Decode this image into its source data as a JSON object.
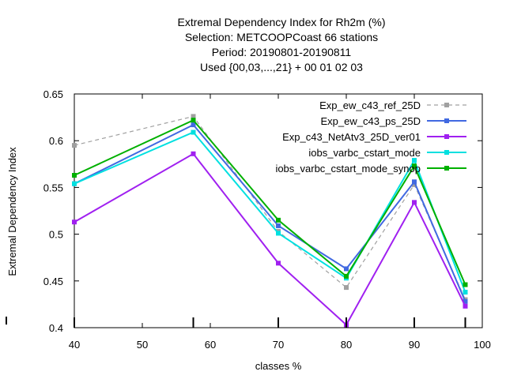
{
  "chart_data": {
    "type": "line",
    "title_lines": [
      "Extremal Dependency Index  for Rh2m (%)",
      "Selection: METCOOPCoast     66 stations",
      "Period: 20190801-20190811",
      "Used {00,03,...,21} + 00 01 02 03"
    ],
    "xlabel": "classes %",
    "ylabel": "Extremal Dependency Index",
    "xlim": [
      40,
      100
    ],
    "ylim": [
      0.4,
      0.65
    ],
    "xticks": [
      40,
      50,
      60,
      70,
      80,
      90,
      100
    ],
    "yticks": [
      0.4,
      0.45,
      0.5,
      0.55,
      0.6,
      0.65
    ],
    "ytick_labels": [
      "0.4",
      "0.45",
      "0.5",
      "0.55",
      "0.6",
      "0.65"
    ],
    "x": [
      40,
      57.5,
      70,
      80,
      90,
      97.5
    ],
    "legend_position": "top-right",
    "series": [
      {
        "name": "Exp_ew_c43_ref_25D",
        "color": "#a0a0a0",
        "dashed": true,
        "values": [
          0.595,
          0.626,
          0.503,
          0.443,
          0.553,
          0.43
        ]
      },
      {
        "name": "Exp_ew_c43_ps_25D",
        "color": "#4169e1",
        "dashed": false,
        "values": [
          0.554,
          0.617,
          0.509,
          0.463,
          0.556,
          0.428
        ]
      },
      {
        "name": "Exp_c43_NetAtv3_25D_ver01",
        "color": "#a020f0",
        "dashed": false,
        "values": [
          0.513,
          0.586,
          0.469,
          0.403,
          0.534,
          0.423
        ]
      },
      {
        "name": "iobs_varbc_cstart_mode",
        "color": "#00e0e0",
        "dashed": false,
        "values": [
          0.554,
          0.609,
          0.501,
          0.453,
          0.579,
          0.438
        ]
      },
      {
        "name": "iobs_varbc_cstart_mode_synop",
        "color": "#00b000",
        "dashed": false,
        "values": [
          0.563,
          0.622,
          0.515,
          0.455,
          0.573,
          0.446
        ]
      }
    ]
  }
}
